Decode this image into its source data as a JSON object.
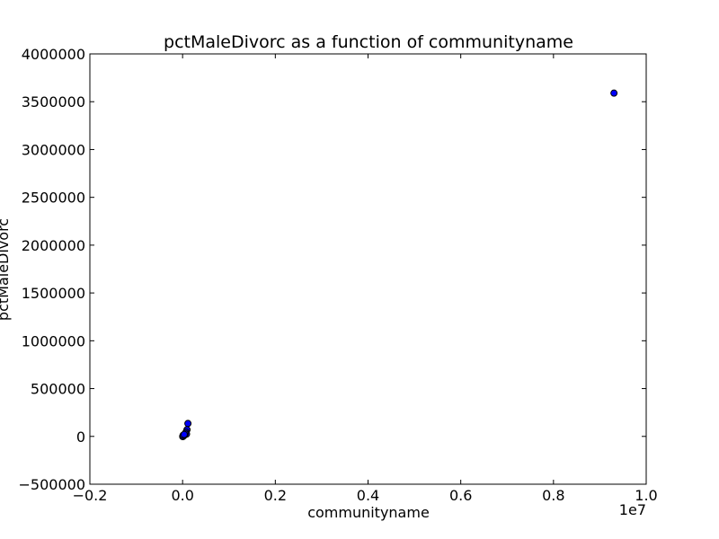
{
  "chart_data": {
    "type": "scatter",
    "title": "pctMaleDivorc as a function of communityname",
    "xlabel": "communityname",
    "ylabel": "pctMaleDivorc",
    "x_offset_label": "1e7",
    "xlim": [
      -0.2,
      1.0
    ],
    "ylim": [
      -500000,
      4000000
    ],
    "x_ticks": [
      -0.2,
      0.0,
      0.2,
      0.4,
      0.6,
      0.8,
      1.0
    ],
    "x_tick_labels": [
      "−0.2",
      "0.0",
      "0.2",
      "0.4",
      "0.6",
      "0.8",
      "1.0"
    ],
    "y_ticks": [
      -500000,
      0,
      500000,
      1000000,
      1500000,
      2000000,
      2500000,
      3000000,
      3500000,
      4000000
    ],
    "y_tick_labels": [
      "−500000",
      "0",
      "500000",
      "1000000",
      "1500000",
      "2000000",
      "2500000",
      "3000000",
      "3500000",
      "4000000"
    ],
    "grid": false,
    "marker_color": "#0000ff",
    "marker_edge_color": "#000000",
    "points": [
      {
        "x": 0.9305,
        "y": 3590000
      },
      {
        "x": 0.0115,
        "y": 135000
      },
      {
        "x": 0.0095,
        "y": 70000
      },
      {
        "x": 0.0075,
        "y": 45000
      },
      {
        "x": 0.0085,
        "y": 25000
      },
      {
        "x": 0.0055,
        "y": 30000
      },
      {
        "x": 0.0045,
        "y": 15000
      },
      {
        "x": 0.0025,
        "y": 8000
      },
      {
        "x": 0.0015,
        "y": 3000
      },
      {
        "x": 0.0008,
        "y": 1000
      },
      {
        "x": 0.0005,
        "y": -2000
      },
      {
        "x": 0.0003,
        "y": 500
      },
      {
        "x": 0.0012,
        "y": 12000
      },
      {
        "x": 0.0035,
        "y": 20000
      }
    ]
  }
}
